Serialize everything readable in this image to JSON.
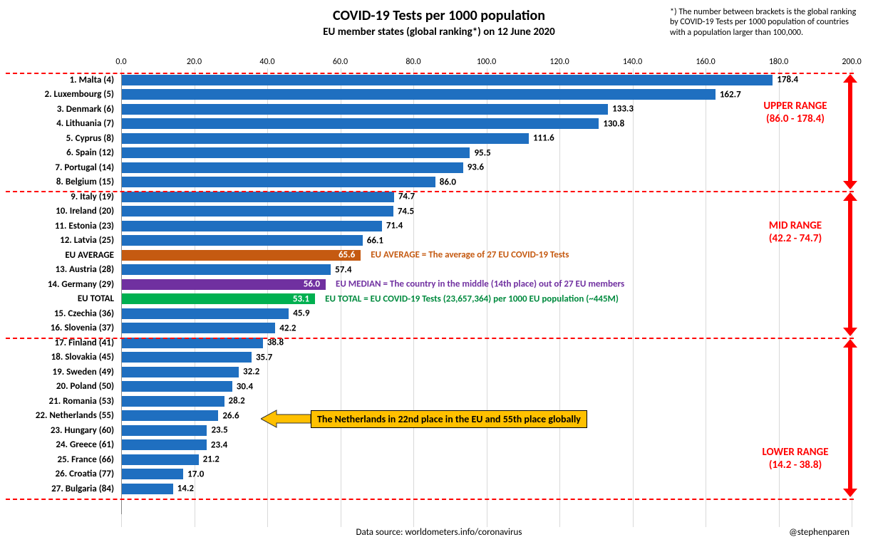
{
  "chart": {
    "title": "COVID-19 Tests per 1000 population",
    "subtitle": "EU member states (global ranking*) on 12 June 2020",
    "top_note": "*) The number between brackets is the global ranking by COVID-19 Tests per 1000 population of countries with a population larger than 100,000.",
    "x_axis": {
      "min": 0.0,
      "max": 200.0,
      "step": 20.0
    },
    "bars": [
      {
        "label": "1. Malta (4)",
        "value": 178.4,
        "color": "#1f6fc0",
        "value_color": "#000",
        "value_inside": false
      },
      {
        "label": "2. Luxembourg (5)",
        "value": 162.7,
        "color": "#1f6fc0",
        "value_color": "#000",
        "value_inside": false
      },
      {
        "label": "3. Denmark (6)",
        "value": 133.3,
        "color": "#1f6fc0",
        "value_color": "#000",
        "value_inside": false
      },
      {
        "label": "4. Lithuania (7)",
        "value": 130.8,
        "color": "#1f6fc0",
        "value_color": "#000",
        "value_inside": false
      },
      {
        "label": "5. Cyprus (8)",
        "value": 111.6,
        "color": "#1f6fc0",
        "value_color": "#000",
        "value_inside": false
      },
      {
        "label": "6. Spain (12)",
        "value": 95.5,
        "color": "#1f6fc0",
        "value_color": "#000",
        "value_inside": false
      },
      {
        "label": "7. Portugal (14)",
        "value": 93.6,
        "color": "#1f6fc0",
        "value_color": "#000",
        "value_inside": false
      },
      {
        "label": "8. Belgium (15)",
        "value": 86.0,
        "color": "#1f6fc0",
        "value_color": "#000",
        "value_inside": false
      },
      {
        "label": "9. Italy (19)",
        "value": 74.7,
        "color": "#1f6fc0",
        "value_color": "#000",
        "value_inside": false
      },
      {
        "label": "10. Ireland (20)",
        "value": 74.5,
        "color": "#1f6fc0",
        "value_color": "#000",
        "value_inside": false
      },
      {
        "label": "11. Estonia (23)",
        "value": 71.4,
        "color": "#1f6fc0",
        "value_color": "#000",
        "value_inside": false
      },
      {
        "label": "12. Latvia (25)",
        "value": 66.1,
        "color": "#1f6fc0",
        "value_color": "#000",
        "value_inside": false
      },
      {
        "label": "EU AVERAGE",
        "value": 65.6,
        "color": "#c55a11",
        "value_color": "#fff",
        "value_inside": true,
        "annotation": "EU AVERAGE = The average of 27 EU COVID-19 Tests",
        "annotation_color": "#c55a11"
      },
      {
        "label": "13. Austria (28)",
        "value": 57.4,
        "color": "#1f6fc0",
        "value_color": "#000",
        "value_inside": false
      },
      {
        "label": "14. Germany (29)",
        "value": 56.0,
        "color": "#7030a0",
        "value_color": "#fff",
        "value_inside": true,
        "annotation": "EU MEDIAN = The country in the middle (14th place) out of 27 EU members",
        "annotation_color": "#7030a0"
      },
      {
        "label": "EU TOTAL",
        "value": 53.1,
        "color": "#00b050",
        "value_color": "#fff",
        "value_inside": true,
        "annotation": "EU TOTAL = EU COVID-19 Tests (23,657,364) per 1000 EU population (~445M)",
        "annotation_color": "#008a3e"
      },
      {
        "label": "15. Czechia (36)",
        "value": 45.9,
        "color": "#1f6fc0",
        "value_color": "#000",
        "value_inside": false
      },
      {
        "label": "16. Slovenia (37)",
        "value": 42.2,
        "color": "#1f6fc0",
        "value_color": "#000",
        "value_inside": false
      },
      {
        "label": "17. Finland (41)",
        "value": 38.8,
        "color": "#1f6fc0",
        "value_color": "#000",
        "value_inside": false
      },
      {
        "label": "18. Slovakia (45)",
        "value": 35.7,
        "color": "#1f6fc0",
        "value_color": "#000",
        "value_inside": false
      },
      {
        "label": "19. Sweden (49)",
        "value": 32.2,
        "color": "#1f6fc0",
        "value_color": "#000",
        "value_inside": false
      },
      {
        "label": "20. Poland (50)",
        "value": 30.4,
        "color": "#1f6fc0",
        "value_color": "#000",
        "value_inside": false
      },
      {
        "label": "21. Romania (53)",
        "value": 28.2,
        "color": "#1f6fc0",
        "value_color": "#000",
        "value_inside": false
      },
      {
        "label": "22. Netherlands (55)",
        "value": 26.6,
        "color": "#1f6fc0",
        "value_color": "#000",
        "value_inside": false,
        "callout": true
      },
      {
        "label": "23. Hungary (60)",
        "value": 23.5,
        "color": "#1f6fc0",
        "value_color": "#000",
        "value_inside": false
      },
      {
        "label": "24. Greece (61)",
        "value": 23.4,
        "color": "#1f6fc0",
        "value_color": "#000",
        "value_inside": false
      },
      {
        "label": "25. France (66)",
        "value": 21.2,
        "color": "#1f6fc0",
        "value_color": "#000",
        "value_inside": false
      },
      {
        "label": "26. Croatia (77)",
        "value": 17.0,
        "color": "#1f6fc0",
        "value_color": "#000",
        "value_inside": false
      },
      {
        "label": "27. Bulgaria (84)",
        "value": 14.2,
        "color": "#1f6fc0",
        "value_color": "#000",
        "value_inside": false
      }
    ],
    "ranges": {
      "upper": {
        "label": "UPPER RANGE",
        "sublabel": "(86.0 - 178.4)"
      },
      "mid": {
        "label": "MID RANGE",
        "sublabel": "(42.2 - 74.7)"
      },
      "lower": {
        "label": "LOWER RANGE",
        "sublabel": "(14.2 - 38.8)"
      }
    },
    "callout_text": "The Netherlands in 22nd place in the EU and 55th place globally",
    "footer": "Data source: worldometers.info/coronavirus",
    "attribution": "@stephenparen"
  }
}
